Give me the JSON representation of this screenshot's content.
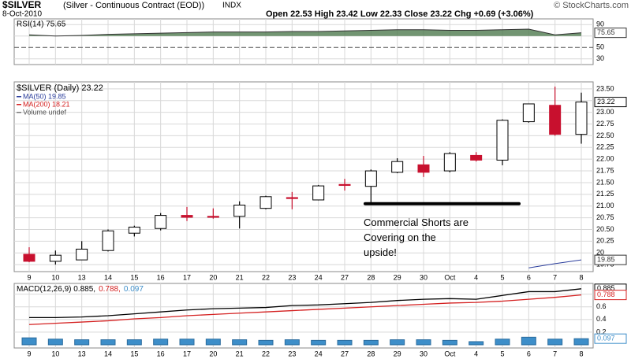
{
  "header": {
    "symbol": "$SILVER",
    "description": "(Silver - Continuous Contract (EOD))",
    "exchange": "INDX",
    "date": "8-Oct-2010",
    "quote": "Open 22.53 High 23.42 Low 22.33 Close 23.22 Chg +0.69 (+3.06%)",
    "credit": "© StockCharts.com"
  },
  "chart_data": [
    {
      "type": "area",
      "title": "RSI(14) 75.65",
      "ylim": [
        20,
        100
      ],
      "yticks": [
        30,
        50,
        70,
        90
      ],
      "dashed_tick": 50,
      "fill_base": 70,
      "series": [
        {
          "name": "RSI(14)",
          "color": "#4f7a4f",
          "values": [
            72,
            70,
            71,
            73,
            74,
            75,
            76,
            77,
            77,
            77,
            78,
            78,
            79,
            80,
            81,
            81,
            80,
            80,
            81,
            82,
            72,
            75.65
          ]
        }
      ]
    },
    {
      "type": "candlestick",
      "title": "$SILVER (Daily) 23.22",
      "ylim": [
        19.6,
        23.65
      ],
      "yticks": [
        {
          "value": 19.75,
          "label": "19.75"
        },
        20,
        {
          "value": 20.25,
          "label": "20.25"
        },
        {
          "value": 20.5,
          "label": "20.50"
        },
        {
          "value": 20.75,
          "label": "20.75"
        },
        {
          "value": 21,
          "label": "21.00"
        },
        {
          "value": 21.25,
          "label": "21.25"
        },
        {
          "value": 21.5,
          "label": "21.50"
        },
        {
          "value": 21.75,
          "label": "21.75"
        },
        {
          "value": 22,
          "label": "22.00"
        },
        {
          "value": 22.25,
          "label": "22.25"
        },
        {
          "value": 22.5,
          "label": "22.50"
        },
        {
          "value": 22.75,
          "label": "22.75"
        },
        {
          "value": 23,
          "label": "23.00"
        },
        {
          "value": 23.25,
          "label": "23.25"
        },
        {
          "value": 23.5,
          "label": "23.50"
        }
      ],
      "categories": [
        "9",
        "10",
        "13",
        "14",
        "15",
        "16",
        "17",
        "20",
        "21",
        "22",
        "23",
        "24",
        "27",
        "28",
        "29",
        "30",
        "Oct",
        "4",
        "5",
        "6",
        "7",
        "8"
      ],
      "open": [
        19.97,
        19.82,
        19.85,
        20.05,
        20.42,
        20.52,
        20.8,
        20.78,
        20.78,
        20.95,
        21.18,
        21.13,
        21.46,
        21.42,
        21.72,
        21.88,
        21.75,
        22.08,
        21.98,
        22.8,
        23.15,
        22.53
      ],
      "high": [
        20.12,
        20.05,
        20.25,
        20.5,
        20.58,
        20.85,
        20.98,
        20.95,
        21.1,
        21.22,
        21.3,
        21.45,
        21.58,
        21.78,
        22.02,
        22.07,
        22.15,
        22.15,
        22.85,
        23.18,
        23.55,
        23.42
      ],
      "low": [
        19.8,
        19.75,
        19.85,
        20.03,
        20.35,
        20.48,
        20.68,
        20.73,
        20.52,
        20.93,
        20.93,
        21.12,
        21.33,
        21.07,
        21.7,
        21.62,
        21.72,
        21.95,
        21.87,
        22.78,
        22.5,
        22.33
      ],
      "close": [
        19.82,
        19.95,
        20.08,
        20.47,
        20.55,
        20.8,
        20.76,
        20.77,
        21.02,
        21.2,
        21.17,
        21.43,
        21.45,
        21.75,
        21.95,
        21.72,
        22.12,
        21.98,
        22.83,
        23.18,
        22.53,
        23.22
      ],
      "colors": [
        "#c8102e",
        "#000000",
        "#000000",
        "#000000",
        "#000000",
        "#000000",
        "#c8102e",
        "#c8102e",
        "#000000",
        "#000000",
        "#c8102e",
        "#000000",
        "#c8102e",
        "#000000",
        "#000000",
        "#c8102e",
        "#000000",
        "#c8102e",
        "#000000",
        "#000000",
        "#c8102e",
        "#000000"
      ],
      "series": [
        {
          "name": "MA(50) 19.85",
          "color": "#2a3d9c",
          "values": [
            null,
            null,
            null,
            null,
            null,
            null,
            null,
            null,
            null,
            null,
            null,
            null,
            null,
            null,
            null,
            null,
            null,
            null,
            null,
            19.68,
            19.77,
            19.85
          ]
        }
      ],
      "legend": [
        {
          "text": "MA(200) 18.21",
          "color": "#d42020"
        },
        {
          "text": "Volume undef",
          "color": "#777777"
        }
      ],
      "annotation": {
        "lines": [
          "Commercial Shorts are",
          "Covering on the",
          "upside!"
        ],
        "marker_level": 21.05
      }
    },
    {
      "type": "line",
      "ylim": [
        -0.05,
        0.97
      ],
      "yticks": [
        0.2,
        0.4,
        0.6,
        0.8
      ],
      "categories": [
        "9",
        "10",
        "13",
        "14",
        "15",
        "16",
        "17",
        "20",
        "21",
        "22",
        "23",
        "24",
        "27",
        "28",
        "29",
        "30",
        "Oct",
        "4",
        "5",
        "6",
        "7",
        "8"
      ],
      "legend": [
        {
          "text": "MACD(12,26,9) 0.885,",
          "color": "#000000"
        },
        {
          "text": "0.788,",
          "color": "#d42020"
        },
        {
          "text": "0.097",
          "color": "#3d8ec9"
        }
      ],
      "series": [
        {
          "name": "MACD",
          "color": "#000000",
          "values": [
            0.43,
            0.43,
            0.44,
            0.46,
            0.49,
            0.52,
            0.55,
            0.57,
            0.58,
            0.59,
            0.62,
            0.63,
            0.65,
            0.67,
            0.7,
            0.72,
            0.73,
            0.72,
            0.78,
            0.84,
            0.84,
            0.885
          ]
        },
        {
          "name": "Signal",
          "color": "#d42020",
          "values": [
            0.32,
            0.34,
            0.36,
            0.38,
            0.41,
            0.43,
            0.46,
            0.48,
            0.5,
            0.52,
            0.54,
            0.56,
            0.58,
            0.6,
            0.62,
            0.64,
            0.66,
            0.67,
            0.69,
            0.72,
            0.75,
            0.788
          ]
        },
        {
          "name": "Histogram",
          "color": "#3d8ec9",
          "style": "bar",
          "values": [
            0.11,
            0.09,
            0.08,
            0.08,
            0.08,
            0.09,
            0.09,
            0.09,
            0.08,
            0.07,
            0.08,
            0.07,
            0.07,
            0.07,
            0.08,
            0.08,
            0.07,
            0.05,
            0.09,
            0.12,
            0.09,
            0.097
          ]
        }
      ]
    }
  ]
}
